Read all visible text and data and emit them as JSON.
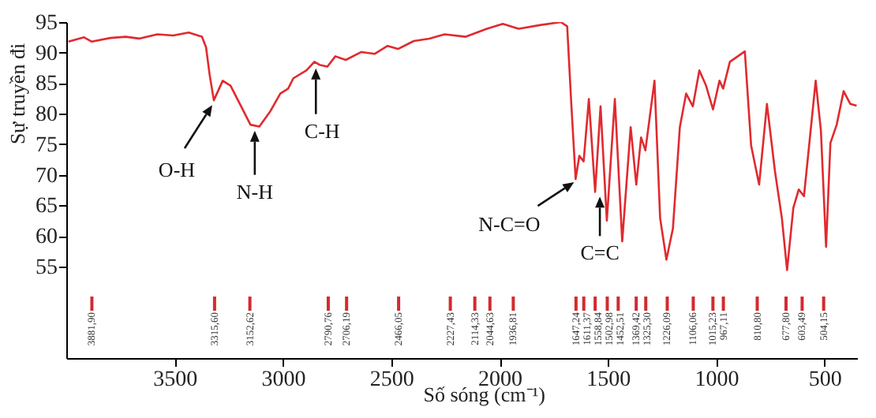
{
  "chart_data": {
    "type": "line",
    "xlabel": "Số sóng (cm⁻¹)",
    "ylabel": "Sự truyền đi",
    "xlim": [
      4000,
      350
    ],
    "xticks": [
      3500,
      3000,
      2500,
      2000,
      1500,
      1000,
      500
    ],
    "ylim": [
      40,
      95
    ],
    "yticks": [
      55,
      60,
      65,
      70,
      75,
      80,
      85,
      90,
      95
    ],
    "grid": false,
    "x": [
      3990,
      3918,
      3882,
      3797,
      3725,
      3664,
      3580,
      3507,
      3435,
      3374,
      3355,
      3338,
      3319,
      3278,
      3242,
      3193,
      3150,
      3109,
      3060,
      3012,
      2976,
      2952,
      2891,
      2855,
      2831,
      2795,
      2758,
      2710,
      2638,
      2577,
      2517,
      2469,
      2396,
      2324,
      2254,
      2156,
      2059,
      1985,
      1912,
      1815,
      1717,
      1688,
      1669,
      1649,
      1632,
      1612,
      1588,
      1559,
      1534,
      1505,
      1468,
      1434,
      1395,
      1369,
      1347,
      1327,
      1285,
      1259,
      1230,
      1200,
      1168,
      1139,
      1108,
      1078,
      1047,
      1015,
      985,
      968,
      937,
      868,
      839,
      802,
      766,
      729,
      697,
      673,
      644,
      619,
      595,
      541,
      517,
      493,
      473,
      444,
      412,
      381,
      352
    ],
    "series": [
      {
        "color": "#e02a2f",
        "values": [
          91.8,
          92.5,
          91.8,
          92.4,
          92.6,
          92.3,
          93.0,
          92.8,
          93.3,
          92.6,
          90.9,
          86.3,
          82.2,
          85.4,
          84.6,
          81.2,
          78.2,
          77.9,
          80.3,
          83.3,
          84.1,
          85.8,
          87.1,
          88.5,
          88.0,
          87.7,
          89.4,
          88.8,
          90.1,
          89.8,
          91.1,
          90.6,
          91.9,
          92.3,
          93.0,
          92.6,
          93.9,
          94.7,
          93.9,
          94.5,
          95.0,
          94.3,
          81.6,
          69.3,
          73.1,
          72.2,
          82.4,
          67.2,
          81.2,
          62.5,
          82.4,
          59.1,
          77.8,
          68.4,
          76.1,
          74.0,
          85.4,
          62.9,
          56.1,
          61.2,
          77.8,
          83.3,
          81.2,
          87.1,
          84.6,
          80.7,
          85.4,
          84.1,
          88.5,
          90.2,
          74.8,
          68.4,
          81.6,
          70.6,
          62.9,
          54.4,
          64.6,
          67.6,
          66.5,
          85.4,
          77.3,
          58.2,
          75.2,
          78.2,
          83.7,
          81.6,
          81.3
        ]
      }
    ],
    "annotations": [
      {
        "text": "O-H",
        "x": 3319,
        "y": 82.2
      },
      {
        "text": "N-H",
        "x": 3130,
        "y": 78.0
      },
      {
        "text": "C-H",
        "x": 2848,
        "y": 88.2
      },
      {
        "text": "N-C=O",
        "x": 1649,
        "y": 69.3
      },
      {
        "text": "C=C",
        "x": 1559,
        "y": 67.2
      }
    ],
    "ref_lines": [
      {
        "axis": "x",
        "value": 3881.9,
        "label": "3881,90",
        "color": "#d42a2f"
      },
      {
        "axis": "x",
        "value": 3315.6,
        "label": "3315,60",
        "color": "#d42a2f"
      },
      {
        "axis": "x",
        "value": 3152.62,
        "label": "3152,62",
        "color": "#d42a2f"
      },
      {
        "axis": "x",
        "value": 2790.76,
        "label": "2790,76",
        "color": "#d42a2f"
      },
      {
        "axis": "x",
        "value": 2706.19,
        "label": "2706,19",
        "color": "#d42a2f"
      },
      {
        "axis": "x",
        "value": 2466.05,
        "label": "2466,05",
        "color": "#d42a2f"
      },
      {
        "axis": "x",
        "value": 2227.43,
        "label": "2227,43",
        "color": "#d42a2f"
      },
      {
        "axis": "x",
        "value": 2114.33,
        "label": "2114,33",
        "color": "#d42a2f"
      },
      {
        "axis": "x",
        "value": 2044.63,
        "label": "2044,63",
        "color": "#d42a2f"
      },
      {
        "axis": "x",
        "value": 1936.81,
        "label": "1936,81",
        "color": "#d42a2f"
      },
      {
        "axis": "x",
        "value": 1647.24,
        "label": "1647,24",
        "color": "#d42a2f"
      },
      {
        "axis": "x",
        "value": 1611.37,
        "label": "1611,37",
        "color": "#d42a2f"
      },
      {
        "axis": "x",
        "value": 1558.84,
        "label": "1558,84",
        "color": "#d42a2f"
      },
      {
        "axis": "x",
        "value": 1502.98,
        "label": "1502,98",
        "color": "#d42a2f"
      },
      {
        "axis": "x",
        "value": 1452.51,
        "label": "1452,51",
        "color": "#d42a2f"
      },
      {
        "axis": "x",
        "value": 1369.42,
        "label": "1369,42",
        "color": "#d42a2f"
      },
      {
        "axis": "x",
        "value": 1325.3,
        "label": "1325,30",
        "color": "#d42a2f"
      },
      {
        "axis": "x",
        "value": 1226.09,
        "label": "1226,09",
        "color": "#d42a2f"
      },
      {
        "axis": "x",
        "value": 1106.06,
        "label": "1106,06",
        "color": "#d42a2f"
      },
      {
        "axis": "x",
        "value": 1015.23,
        "label": "1015,23",
        "color": "#d42a2f"
      },
      {
        "axis": "x",
        "value": 967.11,
        "label": "967,11",
        "color": "#d42a2f"
      },
      {
        "axis": "x",
        "value": 810.8,
        "label": "810,80",
        "color": "#d42a2f"
      },
      {
        "axis": "x",
        "value": 677.8,
        "label": "677,80",
        "color": "#d42a2f"
      },
      {
        "axis": "x",
        "value": 603.49,
        "label": "603,49",
        "color": "#d42a2f"
      },
      {
        "axis": "x",
        "value": 504.15,
        "label": "504,15",
        "color": "#d42a2f"
      }
    ]
  }
}
